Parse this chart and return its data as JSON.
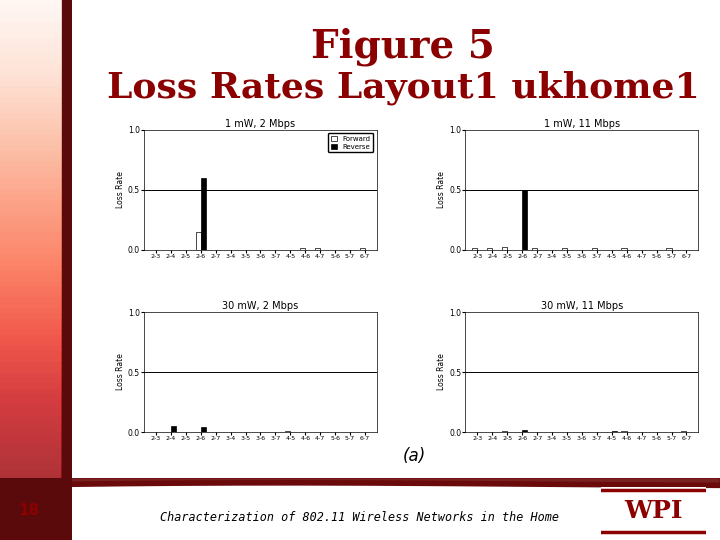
{
  "title_line1": "Figure 5",
  "title_line2": "Loss Rates Layout1 ukhome1",
  "title_color": "#8b0000",
  "title_fontsize": 28,
  "categories": [
    "2-3",
    "2-4",
    "2-5",
    "2-6",
    "2-7",
    "3-4",
    "3-5",
    "3-6",
    "3-7",
    "4-5",
    "4-6",
    "4-7",
    "5-6",
    "5-7",
    "6-7"
  ],
  "subplots": [
    {
      "title": "1 mW, 2 Mbps",
      "forward": [
        0.0,
        0.0,
        0.0,
        0.15,
        0.0,
        0.0,
        0.0,
        0.0,
        0.0,
        0.0,
        0.01,
        0.01,
        0.0,
        0.0,
        0.01
      ],
      "reverse": [
        0.0,
        0.0,
        0.0,
        0.6,
        0.0,
        0.0,
        0.0,
        0.0,
        0.0,
        0.0,
        0.0,
        0.0,
        0.0,
        0.0,
        0.0
      ],
      "show_legend": true
    },
    {
      "title": "1 mW, 11 Mbps",
      "forward": [
        0.01,
        0.01,
        0.02,
        0.0,
        0.01,
        0.0,
        0.01,
        0.0,
        0.01,
        0.0,
        0.01,
        0.0,
        0.0,
        0.01,
        0.0
      ],
      "reverse": [
        0.0,
        0.0,
        0.0,
        0.5,
        0.0,
        0.0,
        0.0,
        0.0,
        0.0,
        0.0,
        0.0,
        0.0,
        0.0,
        0.0,
        0.0
      ],
      "show_legend": false
    },
    {
      "title": "30 mW, 2 Mbps",
      "forward": [
        0.0,
        0.0,
        0.0,
        0.0,
        0.0,
        0.0,
        0.0,
        0.0,
        0.0,
        0.01,
        0.0,
        0.0,
        0.0,
        0.0,
        0.0
      ],
      "reverse": [
        0.0,
        0.05,
        0.0,
        0.04,
        0.0,
        0.0,
        0.0,
        0.0,
        0.0,
        0.0,
        0.0,
        0.0,
        0.0,
        0.0,
        0.0
      ],
      "show_legend": false
    },
    {
      "title": "30 mW, 11 Mbps",
      "forward": [
        0.0,
        0.0,
        0.01,
        0.0,
        0.0,
        0.0,
        0.0,
        0.0,
        0.0,
        0.0,
        0.01,
        0.0,
        0.0,
        0.0,
        0.01
      ],
      "reverse": [
        0.0,
        0.0,
        0.0,
        0.02,
        0.0,
        0.0,
        0.0,
        0.0,
        0.0,
        0.01,
        0.0,
        0.0,
        0.0,
        0.0,
        0.0
      ],
      "show_legend": false
    }
  ],
  "ylabel": "Loss Rate",
  "ylim": [
    0,
    1
  ],
  "yticks": [
    0,
    0.5,
    1
  ],
  "hline_y": 0.5,
  "forward_color": "white",
  "reverse_color": "black",
  "forward_edgecolor": "black",
  "reverse_edgecolor": "black",
  "annotation": "(a)",
  "footer_text": "Characterization of 802.11 Wireless Networks in the Home",
  "footer_page": "18",
  "bg_color": "#ffffff",
  "slide_bg": "#ffffff",
  "bar_width": 0.35,
  "subtitle_font": 7,
  "footer_color": "#8b0000",
  "footer_bg": "#ffffff",
  "wpi_color": "#8b0000"
}
